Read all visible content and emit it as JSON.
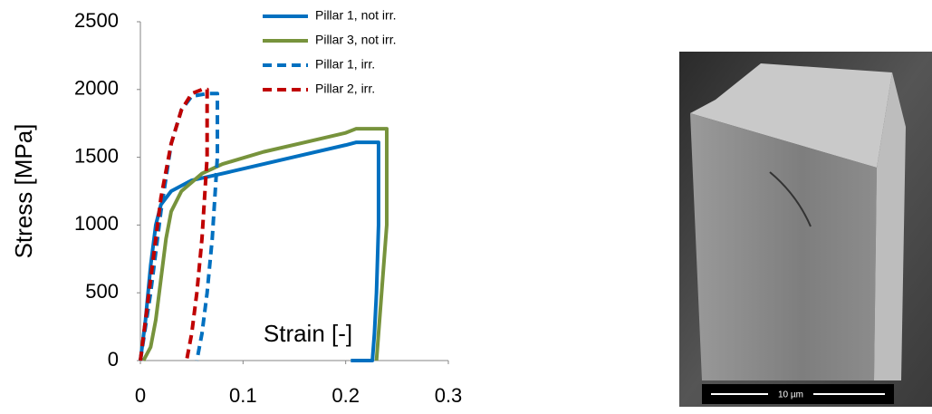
{
  "chart_data": {
    "type": "line",
    "x_label": "Strain [-]",
    "y_label": "Stress [MPa]",
    "xlim": [
      0,
      0.3
    ],
    "xticks": [
      0,
      0.1,
      0.2,
      0.3
    ],
    "ylim": [
      0,
      2500
    ],
    "yticks": [
      0,
      500,
      1000,
      1500,
      2000,
      2500
    ],
    "grid": false,
    "legend": "top",
    "series": [
      {
        "name": "Pillar 1, not irr.",
        "color": "#0070c0",
        "dashed": false,
        "x": [
          0,
          0.005,
          0.01,
          0.015,
          0.02,
          0.03,
          0.05,
          0.08,
          0.12,
          0.16,
          0.2,
          0.21,
          0.232,
          0.232,
          0.23,
          0.228,
          0.226,
          0.205
        ],
        "values": [
          0,
          300,
          700,
          1000,
          1150,
          1250,
          1330,
          1380,
          1450,
          1520,
          1590,
          1610,
          1610,
          1000,
          500,
          200,
          0,
          0
        ]
      },
      {
        "name": "Pillar 3, not irr.",
        "color": "#77933c",
        "dashed": false,
        "x": [
          0.003,
          0.01,
          0.015,
          0.02,
          0.025,
          0.03,
          0.04,
          0.06,
          0.08,
          0.12,
          0.16,
          0.2,
          0.21,
          0.24,
          0.24,
          0.235,
          0.23
        ],
        "values": [
          0,
          100,
          300,
          600,
          900,
          1100,
          1250,
          1380,
          1450,
          1540,
          1610,
          1680,
          1710,
          1710,
          1000,
          500,
          0
        ]
      },
      {
        "name": "Pillar 1, irr.",
        "color": "#0070c0",
        "dashed": true,
        "x": [
          0,
          0.01,
          0.02,
          0.03,
          0.04,
          0.05,
          0.065,
          0.075,
          0.075,
          0.07,
          0.065,
          0.06,
          0.055
        ],
        "values": [
          0,
          500,
          1100,
          1600,
          1850,
          1950,
          1970,
          1970,
          1500,
          900,
          500,
          200,
          0
        ]
      },
      {
        "name": "Pillar 2, irr.",
        "color": "#c00000",
        "dashed": true,
        "x": [
          0,
          0.01,
          0.02,
          0.03,
          0.04,
          0.05,
          0.06,
          0.065,
          0.065,
          0.06,
          0.055,
          0.05,
          0.045
        ],
        "values": [
          0,
          600,
          1200,
          1600,
          1850,
          1970,
          2000,
          2000,
          1500,
          900,
          500,
          200,
          0
        ]
      }
    ]
  },
  "image": {
    "scale_bar": "10 µm"
  }
}
